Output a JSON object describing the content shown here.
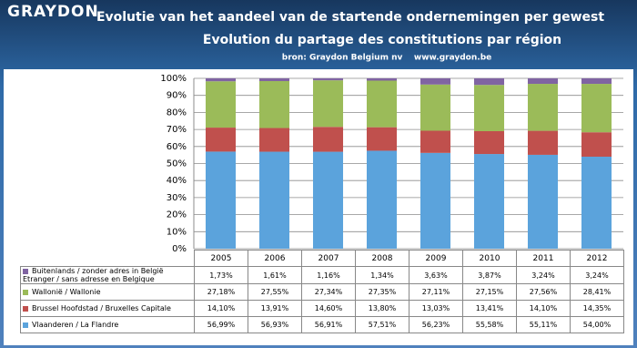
{
  "logo": "GRAYDON",
  "chart_data": {
    "type": "stacked_bar",
    "title": "Evolutie van het aandeel van de startende ondernemingen per gewest",
    "subtitle": "Evolution du partage des constitutions par région",
    "source": "bron: Graydon Belgium nv    www.graydon.be",
    "categories": [
      "2005",
      "2006",
      "2007",
      "2008",
      "2009",
      "2010",
      "2011",
      "2012"
    ],
    "series": [
      {
        "name": "Vlaanderen / La Flandre",
        "color": "#5ba3dc",
        "values": [
          56.99,
          56.93,
          56.91,
          57.51,
          56.23,
          55.58,
          55.11,
          54.0
        ],
        "value_labels": [
          "56,99%",
          "56,93%",
          "56,91%",
          "57,51%",
          "56,23%",
          "55,58%",
          "55,11%",
          "54,00%"
        ]
      },
      {
        "name": "Brussel Hoofdstad / Bruxelles Capitale",
        "color": "#c0504d",
        "values": [
          14.1,
          13.91,
          14.6,
          13.8,
          13.03,
          13.41,
          14.1,
          14.35
        ],
        "value_labels": [
          "14,10%",
          "13,91%",
          "14,60%",
          "13,80%",
          "13,03%",
          "13,41%",
          "14,10%",
          "14,35%"
        ]
      },
      {
        "name": "Wallonië / Wallonie",
        "color": "#9bbb59",
        "values": [
          27.18,
          27.55,
          27.34,
          27.35,
          27.11,
          27.15,
          27.56,
          28.41
        ],
        "value_labels": [
          "27,18%",
          "27,55%",
          "27,34%",
          "27,35%",
          "27,11%",
          "27,15%",
          "27,56%",
          "28,41%"
        ]
      },
      {
        "name": "Buitenlands / zonder adres in België\nEtranger / sans adresse en Belgique",
        "color": "#8064a2",
        "values": [
          1.73,
          1.61,
          1.16,
          1.34,
          3.63,
          3.87,
          3.24,
          3.24
        ],
        "value_labels": [
          "1,73%",
          "1,61%",
          "1,16%",
          "1,34%",
          "3,63%",
          "3,87%",
          "3,24%",
          "3,24%"
        ]
      }
    ],
    "ylim": [
      0,
      100
    ],
    "yticks": [
      {
        "value": 0,
        "label": "0%"
      },
      {
        "value": 10,
        "label": "10%"
      },
      {
        "value": 20,
        "label": "20%"
      },
      {
        "value": 30,
        "label": "30%"
      },
      {
        "value": 40,
        "label": "40%"
      },
      {
        "value": 50,
        "label": "50%"
      },
      {
        "value": 60,
        "label": "60%"
      },
      {
        "value": 70,
        "label": "70%"
      },
      {
        "value": 80,
        "label": "80%"
      },
      {
        "value": 90,
        "label": "90%"
      },
      {
        "value": 100,
        "label": "100%"
      }
    ],
    "grid": true
  }
}
